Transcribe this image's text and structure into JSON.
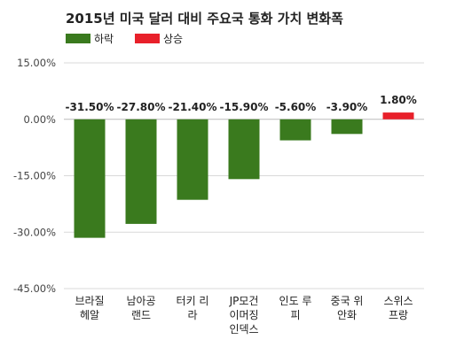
{
  "chart_data": {
    "type": "bar",
    "title": "2015년 미국 달러 대비 주요국 통화 가치 변화폭",
    "legend": [
      {
        "name": "하락",
        "color": "#3a7a1e"
      },
      {
        "name": "상승",
        "color": "#e8202a"
      }
    ],
    "categories": [
      [
        "브라질",
        "헤알"
      ],
      [
        "남아공",
        "랜드"
      ],
      [
        "터키 리",
        "라"
      ],
      [
        "JP모건",
        "이머징",
        "인덱스"
      ],
      [
        "인도 루",
        "피"
      ],
      [
        "중국 위",
        "안화"
      ],
      [
        "스위스",
        "프랑"
      ]
    ],
    "values": [
      -31.5,
      -27.8,
      -21.4,
      -15.9,
      -5.6,
      -3.9,
      1.8
    ],
    "data_labels": [
      "-31.50%",
      "-27.80%",
      "-21.40%",
      "-15.90%",
      "-5.60%",
      "-3.90%",
      "1.80%"
    ],
    "ylim": [
      -45,
      15
    ],
    "yticks": [
      15,
      0,
      -15,
      -30,
      -45
    ],
    "ytick_labels": [
      "15.00%",
      "0.00%",
      "-15.00%",
      "-30.00%",
      "-45.00%"
    ],
    "grid": true,
    "legend_position": "top-left"
  }
}
